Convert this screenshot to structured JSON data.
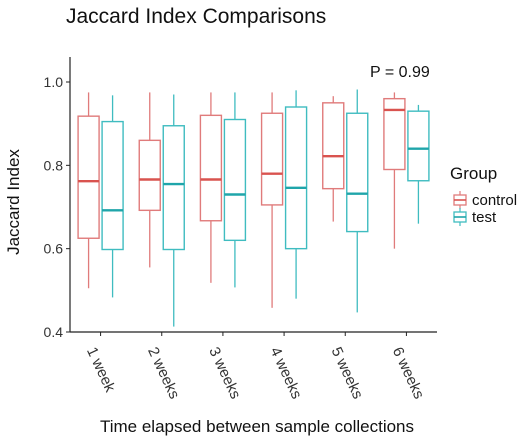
{
  "chart_data": {
    "type": "boxplot",
    "title": "Jaccard Index Comparisons",
    "xlabel": "Time elapsed between sample collections",
    "ylabel": "Jaccard Index",
    "ylim": [
      0.4,
      1.06
    ],
    "yticks": [
      0.4,
      0.6,
      0.8,
      1.0
    ],
    "ytick_labels": [
      "0.4",
      "0.6",
      "0.8",
      "1.0"
    ],
    "grid": false,
    "categories": [
      "1 week",
      "2 weeks",
      "3 weeks",
      "4 weeks",
      "5 weeks",
      "6 weeks"
    ],
    "annotation": "P = 0.99",
    "legend": {
      "title": "Group",
      "placement": "right",
      "entries": [
        "control",
        "test"
      ]
    },
    "series": [
      {
        "name": "control",
        "color": "#e07b7b",
        "median_color": "#d9534f",
        "boxes": [
          {
            "min": 0.505,
            "q1": 0.625,
            "median": 0.762,
            "q3": 0.918,
            "max": 0.975
          },
          {
            "min": 0.555,
            "q1": 0.692,
            "median": 0.766,
            "q3": 0.86,
            "max": 0.975
          },
          {
            "min": 0.518,
            "q1": 0.667,
            "median": 0.766,
            "q3": 0.92,
            "max": 0.975
          },
          {
            "min": 0.458,
            "q1": 0.705,
            "median": 0.78,
            "q3": 0.925,
            "max": 0.975
          },
          {
            "min": 0.665,
            "q1": 0.744,
            "median": 0.822,
            "q3": 0.95,
            "max": 0.966
          },
          {
            "min": 0.6,
            "q1": 0.79,
            "median": 0.933,
            "q3": 0.96,
            "max": 0.975
          }
        ]
      },
      {
        "name": "test",
        "color": "#3fbcc0",
        "median_color": "#1fa5aa",
        "boxes": [
          {
            "min": 0.483,
            "q1": 0.598,
            "median": 0.692,
            "q3": 0.905,
            "max": 0.968
          },
          {
            "min": 0.413,
            "q1": 0.598,
            "median": 0.755,
            "q3": 0.895,
            "max": 0.97
          },
          {
            "min": 0.507,
            "q1": 0.62,
            "median": 0.73,
            "q3": 0.91,
            "max": 0.975
          },
          {
            "min": 0.48,
            "q1": 0.6,
            "median": 0.746,
            "q3": 0.94,
            "max": 0.98
          },
          {
            "min": 0.447,
            "q1": 0.641,
            "median": 0.732,
            "q3": 0.925,
            "max": 0.982
          },
          {
            "min": 0.66,
            "q1": 0.763,
            "median": 0.84,
            "q3": 0.93,
            "max": 0.945
          }
        ]
      }
    ]
  }
}
